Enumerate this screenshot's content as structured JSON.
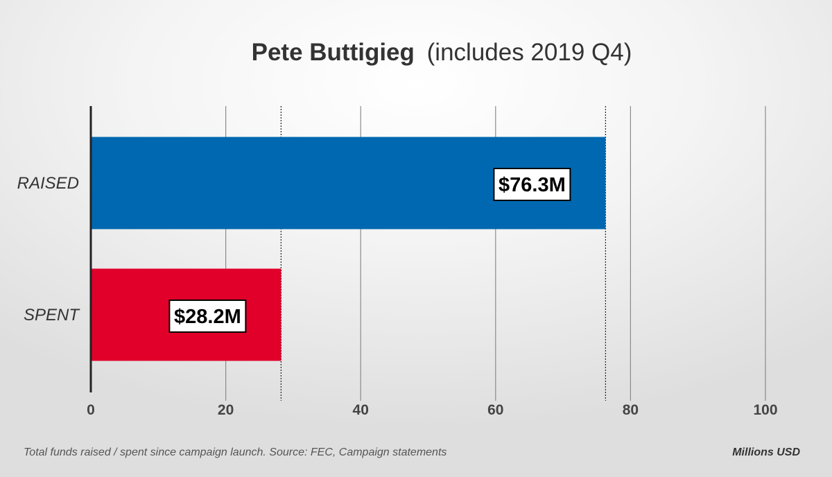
{
  "chart_data": {
    "type": "bar",
    "orientation": "horizontal",
    "title_bold": "Pete Buttigieg",
    "title_normal": "(includes 2019 Q4)",
    "categories": [
      "RAISED",
      "SPENT"
    ],
    "values": [
      76.3,
      28.2
    ],
    "value_labels": [
      "$76.3M",
      "$28.2M"
    ],
    "colors": [
      "#0068b0",
      "#e1002a"
    ],
    "xlim": [
      0,
      100
    ],
    "x_ticks": [
      0,
      20,
      40,
      60,
      80,
      100
    ],
    "x_tick_labels": [
      "0",
      "20",
      "40",
      "60",
      "80",
      "100"
    ],
    "xlabel": "Millions USD",
    "footnote": "Total funds raised / spent since campaign launch. Source: FEC, Campaign statements",
    "grid": true,
    "reference_lines": [
      28.2,
      76.3
    ]
  }
}
